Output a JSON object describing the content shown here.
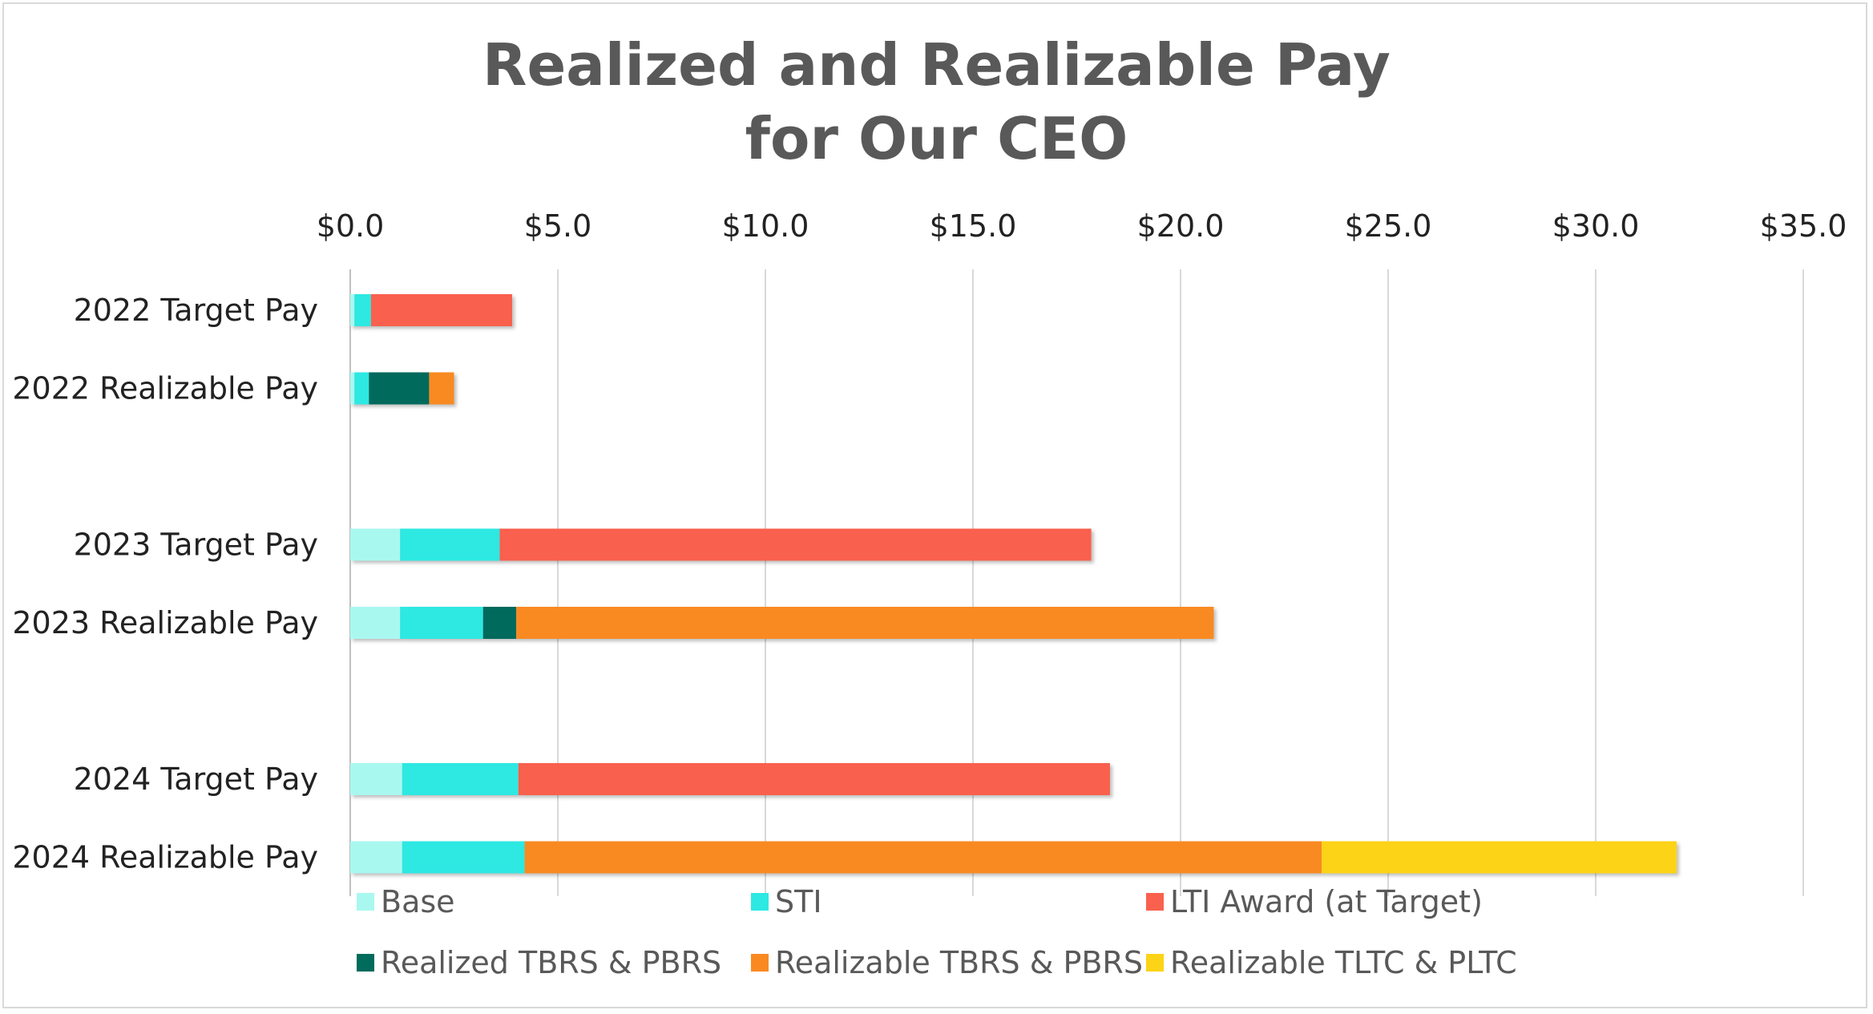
{
  "chart_data": {
    "type": "bar",
    "orientation": "horizontal",
    "stacked": true,
    "title_lines": [
      "Realized and Realizable Pay",
      "for Our CEO"
    ],
    "x_axis_position": "top",
    "xlim": [
      0,
      35
    ],
    "xticks": [
      0,
      5,
      10,
      15,
      20,
      25,
      30,
      35
    ],
    "xtick_labels": [
      "$0.0",
      "$5.0",
      "$10.0",
      "$15.0",
      "$20.0",
      "$25.0",
      "$30.0",
      "$35.0"
    ],
    "grid": true,
    "categories": [
      "2022 Target Pay",
      "2022 Realizable Pay",
      "",
      "2023 Target Pay",
      "2023 Realizable Pay",
      "",
      "2024 Target Pay",
      "2024 Realizable Pay"
    ],
    "series": [
      {
        "name": "Base",
        "color": "#a9f8f0",
        "values": [
          0.1,
          0.1,
          0,
          1.2,
          1.2,
          0,
          1.25,
          1.25
        ]
      },
      {
        "name": "STI",
        "color": "#2ee8e2",
        "values": [
          0.4,
          0.35,
          0,
          2.4,
          2.0,
          0,
          2.8,
          2.95
        ]
      },
      {
        "name": "LTI Award (at Target)",
        "color": "#f9614e",
        "values": [
          3.4,
          0,
          0,
          14.25,
          0,
          0,
          14.25,
          0
        ]
      },
      {
        "name": "Realized TBRS & PBRS",
        "color": "#016b5c",
        "values": [
          0,
          1.45,
          0,
          0,
          0.8,
          0,
          0,
          0
        ]
      },
      {
        "name": "Realizable TBRS & PBRS",
        "color": "#f98a22",
        "values": [
          0,
          0.6,
          0,
          0,
          16.8,
          0,
          0,
          19.2
        ]
      },
      {
        "name": "Realizable TLTC & PLTC",
        "color": "#fcd316",
        "values": [
          0,
          0,
          0,
          0,
          0,
          0,
          0,
          8.55
        ]
      }
    ],
    "legend": {
      "placement": "bottom",
      "rows": [
        [
          "Base",
          "STI",
          "LTI Award (at Target)"
        ],
        [
          "Realized TBRS & PBRS",
          "Realizable TBRS & PBRS",
          "Realizable TLTC & PLTC"
        ]
      ]
    }
  }
}
